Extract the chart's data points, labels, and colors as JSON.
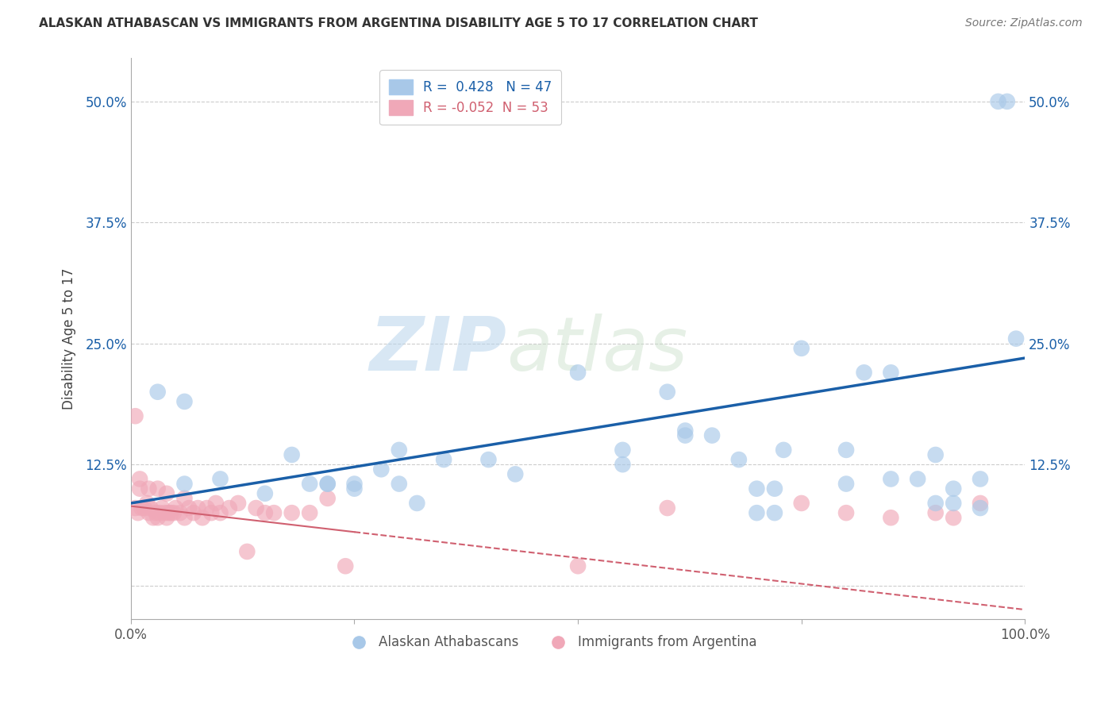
{
  "title": "ALASKAN ATHABASCAN VS IMMIGRANTS FROM ARGENTINA DISABILITY AGE 5 TO 17 CORRELATION CHART",
  "source": "Source: ZipAtlas.com",
  "ylabel": "Disability Age 5 to 17",
  "legend_label1": "Alaskan Athabascans",
  "legend_label2": "Immigrants from Argentina",
  "r1": 0.428,
  "n1": 47,
  "r2": -0.052,
  "n2": 53,
  "color1": "#a8c8e8",
  "color2": "#f0a8b8",
  "line1_color": "#1a5fa8",
  "line2_color": "#d06070",
  "background_color": "#ffffff",
  "watermark_zip": "ZIP",
  "watermark_atlas": "atlas",
  "yticks": [
    0.0,
    0.125,
    0.25,
    0.375,
    0.5
  ],
  "ytick_labels": [
    "",
    "12.5%",
    "25.0%",
    "37.5%",
    "50.0%"
  ],
  "xmin": 0.0,
  "xmax": 1.0,
  "ymin": -0.035,
  "ymax": 0.545,
  "blue_points_x": [
    0.03,
    0.06,
    0.1,
    0.15,
    0.2,
    0.22,
    0.25,
    0.28,
    0.3,
    0.32,
    0.35,
    0.4,
    0.43,
    0.5,
    0.55,
    0.6,
    0.62,
    0.65,
    0.68,
    0.7,
    0.72,
    0.73,
    0.75,
    0.8,
    0.82,
    0.85,
    0.88,
    0.9,
    0.92,
    0.95,
    0.97,
    0.98,
    0.55,
    0.62,
    0.7,
    0.72,
    0.8,
    0.85,
    0.9,
    0.92,
    0.95,
    0.25,
    0.3,
    0.22,
    0.18,
    0.06,
    0.99
  ],
  "blue_points_y": [
    0.2,
    0.19,
    0.11,
    0.095,
    0.105,
    0.105,
    0.1,
    0.12,
    0.14,
    0.085,
    0.13,
    0.13,
    0.115,
    0.22,
    0.14,
    0.2,
    0.16,
    0.155,
    0.13,
    0.1,
    0.1,
    0.14,
    0.245,
    0.14,
    0.22,
    0.11,
    0.11,
    0.135,
    0.1,
    0.11,
    0.5,
    0.5,
    0.125,
    0.155,
    0.075,
    0.075,
    0.105,
    0.22,
    0.085,
    0.085,
    0.08,
    0.105,
    0.105,
    0.105,
    0.135,
    0.105,
    0.255
  ],
  "pink_points_x": [
    0.005,
    0.008,
    0.01,
    0.012,
    0.015,
    0.018,
    0.02,
    0.022,
    0.025,
    0.028,
    0.03,
    0.032,
    0.035,
    0.038,
    0.04,
    0.042,
    0.045,
    0.048,
    0.05,
    0.055,
    0.06,
    0.065,
    0.07,
    0.075,
    0.08,
    0.085,
    0.09,
    0.095,
    0.1,
    0.11,
    0.12,
    0.13,
    0.14,
    0.15,
    0.16,
    0.18,
    0.2,
    0.22,
    0.24,
    0.5,
    0.6,
    0.75,
    0.8,
    0.85,
    0.9,
    0.92,
    0.95,
    0.005,
    0.01,
    0.02,
    0.03,
    0.04,
    0.06
  ],
  "pink_points_y": [
    0.08,
    0.075,
    0.1,
    0.08,
    0.08,
    0.085,
    0.075,
    0.08,
    0.07,
    0.075,
    0.07,
    0.075,
    0.08,
    0.075,
    0.07,
    0.075,
    0.075,
    0.075,
    0.08,
    0.075,
    0.07,
    0.08,
    0.075,
    0.08,
    0.07,
    0.08,
    0.075,
    0.085,
    0.075,
    0.08,
    0.085,
    0.035,
    0.08,
    0.075,
    0.075,
    0.075,
    0.075,
    0.09,
    0.02,
    0.02,
    0.08,
    0.085,
    0.075,
    0.07,
    0.075,
    0.07,
    0.085,
    0.175,
    0.11,
    0.1,
    0.1,
    0.095,
    0.09
  ],
  "blue_line_x0": 0.0,
  "blue_line_y0": 0.085,
  "blue_line_x1": 1.0,
  "blue_line_y1": 0.235,
  "pink_line_x0": 0.0,
  "pink_line_y0": 0.082,
  "pink_line_x1": 1.0,
  "pink_line_y1": -0.025
}
